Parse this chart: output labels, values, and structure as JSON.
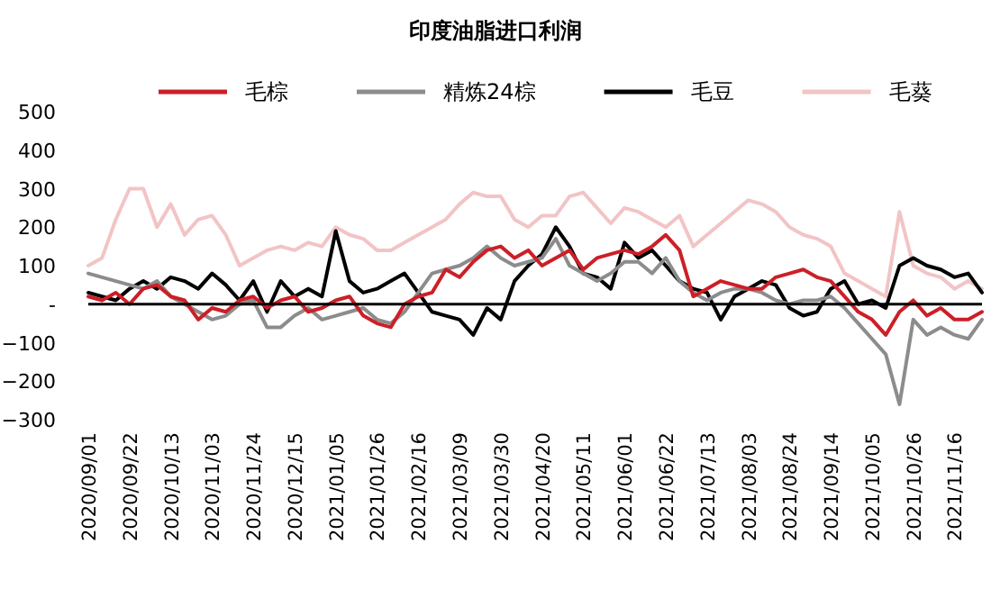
{
  "chart_data": {
    "type": "line",
    "title": "印度油脂进口利润",
    "legend": "top",
    "ref_lines": [
      {
        "axis": "y",
        "value": 0,
        "color": "#000000"
      }
    ],
    "x": [
      "2020-09-01",
      "2020-09-08",
      "2020-09-15",
      "2020-09-22",
      "2020-09-29",
      "2020-10-06",
      "2020-10-13",
      "2020-10-20",
      "2020-10-27",
      "2020-11-03",
      "2020-11-10",
      "2020-11-17",
      "2020-11-24",
      "2020-12-01",
      "2020-12-08",
      "2020-12-15",
      "2020-12-22",
      "2020-12-29",
      "2021-01-05",
      "2021-01-12",
      "2021-01-19",
      "2021-01-26",
      "2021-02-02",
      "2021-02-09",
      "2021-02-16",
      "2021-02-23",
      "2021-03-02",
      "2021-03-09",
      "2021-03-16",
      "2021-03-23",
      "2021-03-30",
      "2021-04-06",
      "2021-04-13",
      "2021-04-20",
      "2021-04-27",
      "2021-05-04",
      "2021-05-11",
      "2021-05-18",
      "2021-05-25",
      "2021-06-01",
      "2021-06-08",
      "2021-06-15",
      "2021-06-22",
      "2021-06-29",
      "2021-07-06",
      "2021-07-13",
      "2021-07-20",
      "2021-07-27",
      "2021-08-03",
      "2021-08-10",
      "2021-08-17",
      "2021-08-24",
      "2021-08-31",
      "2021-09-07",
      "2021-09-14",
      "2021-09-21",
      "2021-09-28",
      "2021-10-05",
      "2021-10-12",
      "2021-10-19",
      "2021-10-26",
      "2021-11-02",
      "2021-11-09",
      "2021-11-16",
      "2021-11-23",
      "2021-11-30"
    ],
    "xlim": [
      "2020-09-01",
      "2021-11-30"
    ],
    "xticks": [
      {
        "value": "2020-09-01",
        "label": "2020/09/01"
      },
      {
        "value": "2020-09-22",
        "label": "2020/09/22"
      },
      {
        "value": "2020-10-13",
        "label": "2020/10/13"
      },
      {
        "value": "2020-11-03",
        "label": "2020/11/03"
      },
      {
        "value": "2020-11-24",
        "label": "2020/11/24"
      },
      {
        "value": "2020-12-15",
        "label": "2020/12/15"
      },
      {
        "value": "2021-01-05",
        "label": "2021/01/05"
      },
      {
        "value": "2021-01-26",
        "label": "2021/01/26"
      },
      {
        "value": "2021-02-16",
        "label": "2021/02/16"
      },
      {
        "value": "2021-03-09",
        "label": "2021/03/09"
      },
      {
        "value": "2021-03-30",
        "label": "2021/03/30"
      },
      {
        "value": "2021-04-20",
        "label": "2021/04/20"
      },
      {
        "value": "2021-05-11",
        "label": "2021/05/11"
      },
      {
        "value": "2021-06-01",
        "label": "2021/06/01"
      },
      {
        "value": "2021-06-22",
        "label": "2021/06/22"
      },
      {
        "value": "2021-07-13",
        "label": "2021/07/13"
      },
      {
        "value": "2021-08-03",
        "label": "2021/08/03"
      },
      {
        "value": "2021-08-24",
        "label": "2021/08/24"
      },
      {
        "value": "2021-09-14",
        "label": "2021/09/14"
      },
      {
        "value": "2021-10-05",
        "label": "2021/10/05"
      },
      {
        "value": "2021-10-26",
        "label": "2021/10/26"
      },
      {
        "value": "2021-11-16",
        "label": "2021/11/16"
      }
    ],
    "ylim": [
      -300,
      500
    ],
    "yticks": [
      -300,
      -200,
      -100,
      {
        "value": 0,
        "label": "-"
      },
      100,
      200,
      300,
      400,
      500
    ],
    "series": [
      {
        "name": "毛棕",
        "color": "#cc1f27",
        "values": [
          20,
          10,
          30,
          0,
          40,
          50,
          20,
          10,
          -40,
          -10,
          -20,
          10,
          20,
          -10,
          10,
          20,
          -20,
          -10,
          10,
          20,
          -30,
          -50,
          -60,
          0,
          20,
          30,
          90,
          70,
          110,
          140,
          150,
          120,
          140,
          100,
          120,
          140,
          90,
          120,
          130,
          140,
          130,
          150,
          180,
          140,
          20,
          40,
          60,
          50,
          40,
          40,
          70,
          80,
          90,
          70,
          60,
          20,
          -20,
          -40,
          -80,
          -20,
          10,
          -30,
          -10,
          -40,
          -40,
          -20
        ]
      },
      {
        "name": "精炼24棕",
        "color": "#8c8c8c",
        "values": [
          80,
          70,
          60,
          50,
          40,
          60,
          20,
          0,
          -20,
          -40,
          -30,
          0,
          10,
          -60,
          -60,
          -30,
          -10,
          -40,
          -30,
          -20,
          -10,
          -40,
          -50,
          -20,
          30,
          80,
          90,
          100,
          120,
          150,
          120,
          100,
          110,
          120,
          170,
          100,
          80,
          60,
          80,
          110,
          110,
          80,
          120,
          60,
          30,
          10,
          30,
          40,
          40,
          30,
          10,
          0,
          10,
          10,
          20,
          -10,
          -50,
          -90,
          -130,
          -260,
          -40,
          -80,
          -60,
          -80,
          -90,
          -40
        ]
      },
      {
        "name": "毛豆",
        "color": "#000000",
        "values": [
          30,
          20,
          10,
          40,
          60,
          40,
          70,
          60,
          40,
          80,
          50,
          10,
          60,
          -20,
          60,
          20,
          40,
          20,
          190,
          60,
          30,
          40,
          60,
          80,
          30,
          -20,
          -30,
          -40,
          -80,
          -10,
          -40,
          60,
          100,
          130,
          200,
          150,
          80,
          70,
          40,
          160,
          120,
          140,
          100,
          60,
          40,
          30,
          -40,
          20,
          40,
          60,
          50,
          -10,
          -30,
          -20,
          40,
          60,
          0,
          10,
          -10,
          100,
          120,
          100,
          90,
          70,
          80,
          30
        ]
      },
      {
        "name": "毛葵",
        "color": "#f2c4c6",
        "values": [
          100,
          120,
          220,
          300,
          300,
          200,
          260,
          180,
          220,
          230,
          180,
          100,
          120,
          140,
          150,
          140,
          160,
          150,
          200,
          180,
          170,
          140,
          140,
          160,
          180,
          200,
          220,
          260,
          290,
          280,
          280,
          220,
          200,
          230,
          230,
          280,
          290,
          250,
          210,
          250,
          240,
          220,
          200,
          230,
          150,
          180,
          210,
          240,
          270,
          260,
          240,
          200,
          180,
          170,
          150,
          80,
          60,
          40,
          20,
          240,
          100,
          80,
          70,
          40,
          60,
          40
        ]
      }
    ]
  }
}
